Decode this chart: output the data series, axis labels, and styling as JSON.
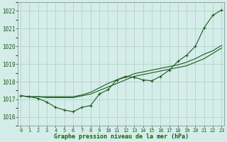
{
  "title": "Graphe pression niveau de la mer (hPa)",
  "bg_color": "#d4ede8",
  "grid_color": "#aacfc8",
  "line_color": "#1a5c1a",
  "ylim": [
    1015.5,
    1022.5
  ],
  "xlim": [
    -0.3,
    23.3
  ],
  "yticks": [
    1016,
    1017,
    1018,
    1019,
    1020,
    1021,
    1022
  ],
  "xtick_labels": [
    "0",
    "1",
    "2",
    "3",
    "4",
    "5",
    "6",
    "7",
    "8",
    "9",
    "10",
    "11",
    "12",
    "13",
    "14",
    "15",
    "16",
    "17",
    "18",
    "19",
    "20",
    "21",
    "22",
    "23"
  ],
  "series1_x": [
    0,
    1,
    2,
    3,
    4,
    5,
    6,
    7,
    8,
    9,
    10,
    11,
    12,
    13,
    14,
    15,
    16,
    17,
    18,
    19,
    20,
    21,
    22,
    23
  ],
  "series1_y": [
    1017.2,
    1017.15,
    1017.05,
    1016.85,
    1016.55,
    1016.4,
    1016.3,
    1016.55,
    1016.65,
    1017.3,
    1017.55,
    1018.1,
    1018.3,
    1018.25,
    1018.1,
    1018.05,
    1018.3,
    1018.65,
    1019.15,
    1019.5,
    1020.0,
    1021.05,
    1021.75,
    1022.05
  ],
  "series2_x": [
    0,
    1,
    2,
    3,
    4,
    5,
    6,
    7,
    8,
    9,
    10,
    11,
    12,
    13,
    14,
    15,
    16,
    17,
    18,
    19,
    20,
    21,
    22,
    23
  ],
  "series2_y": [
    1017.2,
    1017.15,
    1017.15,
    1017.15,
    1017.15,
    1017.15,
    1017.15,
    1017.25,
    1017.4,
    1017.65,
    1017.9,
    1018.1,
    1018.25,
    1018.45,
    1018.55,
    1018.65,
    1018.75,
    1018.85,
    1018.95,
    1019.1,
    1019.3,
    1019.55,
    1019.75,
    1020.05
  ],
  "series3_x": [
    0,
    1,
    2,
    3,
    4,
    5,
    6,
    7,
    8,
    9,
    10,
    11,
    12,
    13,
    14,
    15,
    16,
    17,
    18,
    19,
    20,
    21,
    22,
    23
  ],
  "series3_y": [
    1017.2,
    1017.15,
    1017.15,
    1017.1,
    1017.1,
    1017.1,
    1017.1,
    1017.2,
    1017.3,
    1017.5,
    1017.7,
    1017.9,
    1018.1,
    1018.3,
    1018.4,
    1018.5,
    1018.6,
    1018.7,
    1018.8,
    1018.9,
    1019.1,
    1019.3,
    1019.6,
    1019.9
  ]
}
